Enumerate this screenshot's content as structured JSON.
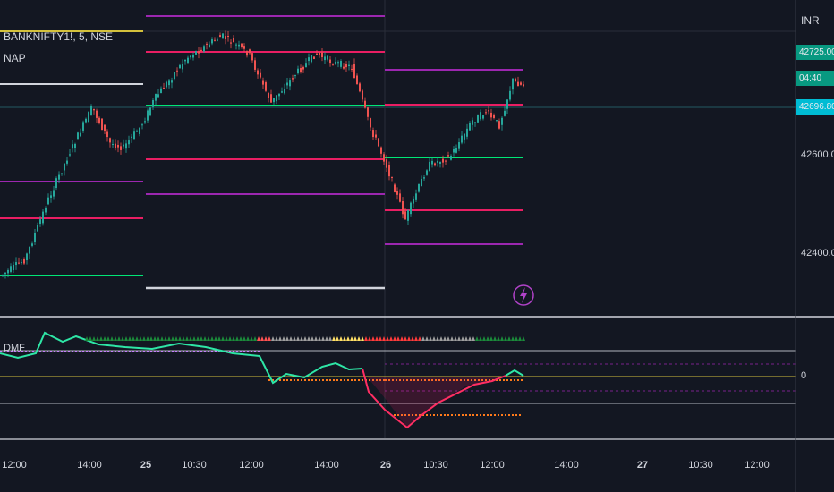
{
  "symbol": {
    "title": "BANKNIFTY1!, 5, NSE",
    "indicator": "NAP",
    "currency": "INR"
  },
  "price_axis": {
    "labels": [
      "42600.00",
      "42400.00"
    ],
    "tags": [
      {
        "text": "42725.00",
        "color": "#089981"
      },
      {
        "text": "04:40",
        "color": "#089981"
      },
      {
        "text": "42696.80",
        "color": "#00bcd4"
      }
    ]
  },
  "oscillator": {
    "label": "DMF",
    "zero_label": "0"
  },
  "time_axis": {
    "ticks": [
      {
        "label": "12:00",
        "bold": false
      },
      {
        "label": "14:00",
        "bold": false
      },
      {
        "label": "25",
        "bold": true
      },
      {
        "label": "10:30",
        "bold": false
      },
      {
        "label": "12:00",
        "bold": false
      },
      {
        "label": "14:00",
        "bold": false
      },
      {
        "label": "26",
        "bold": true
      },
      {
        "label": "10:30",
        "bold": false
      },
      {
        "label": "12:00",
        "bold": false
      },
      {
        "label": "14:00",
        "bold": false
      },
      {
        "label": "27",
        "bold": true
      },
      {
        "label": "10:30",
        "bold": false
      },
      {
        "label": "12:00",
        "bold": false
      }
    ]
  },
  "colors": {
    "background": "#131722",
    "up": "#26a69a",
    "down": "#ef5350",
    "purple": "#9c27b0",
    "pink": "#e91e63",
    "green": "#00e676",
    "white": "#d1d4dc",
    "yellow": "#d4c13c"
  },
  "chart_data": {
    "type": "candlestick",
    "price_range": [
      42300,
      42850
    ],
    "levels_visible": true
  }
}
